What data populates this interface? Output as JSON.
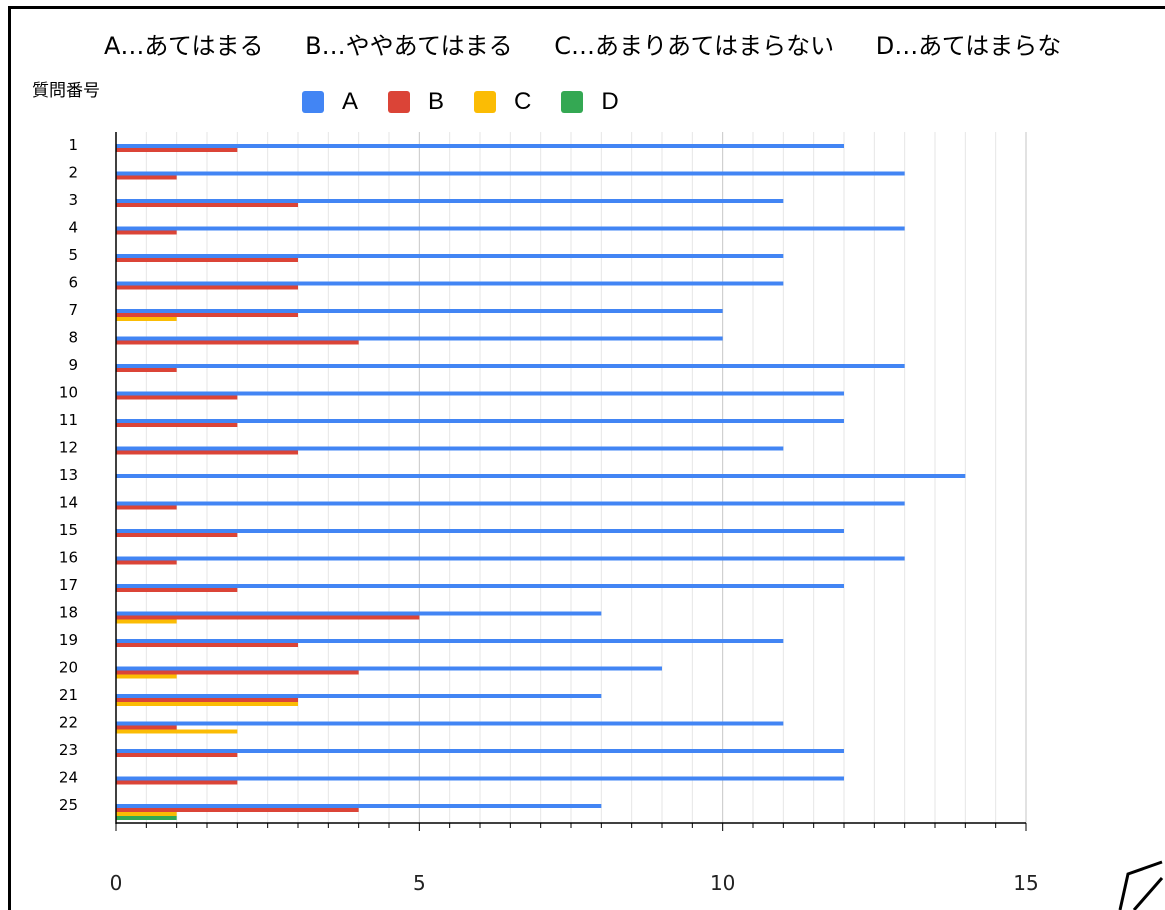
{
  "header": {
    "options": [
      "A…あてはまる",
      "B…ややあてはまる",
      "C…あまりあてはまらない",
      "D…あてはまらな"
    ]
  },
  "chart_data": {
    "type": "bar",
    "orientation": "horizontal",
    "ylabel": "質問番号",
    "xlabel": "",
    "title": "",
    "categories": [
      "1",
      "2",
      "3",
      "4",
      "5",
      "6",
      "7",
      "8",
      "9",
      "10",
      "11",
      "12",
      "13",
      "14",
      "15",
      "16",
      "17",
      "18",
      "19",
      "20",
      "21",
      "22",
      "23",
      "24",
      "25"
    ],
    "xlim": [
      0,
      15
    ],
    "xticks": [
      0,
      5,
      10,
      15
    ],
    "grid": true,
    "legend_position": "top",
    "series": [
      {
        "name": "A",
        "color": "#4285f4",
        "values": [
          12,
          13,
          11,
          13,
          11,
          11,
          10,
          10,
          13,
          12,
          12,
          11,
          14,
          13,
          12,
          13,
          12,
          8,
          11,
          9,
          8,
          11,
          12,
          12,
          8
        ]
      },
      {
        "name": "B",
        "color": "#db4437",
        "values": [
          2,
          1,
          3,
          1,
          3,
          3,
          3,
          4,
          1,
          2,
          2,
          3,
          0,
          1,
          2,
          1,
          2,
          5,
          3,
          4,
          3,
          1,
          2,
          2,
          4
        ]
      },
      {
        "name": "C",
        "color": "#fbbc04",
        "values": [
          0,
          0,
          0,
          0,
          0,
          0,
          1,
          0,
          0,
          0,
          0,
          0,
          0,
          0,
          0,
          0,
          0,
          1,
          0,
          1,
          3,
          2,
          0,
          0,
          1
        ]
      },
      {
        "name": "D",
        "color": "#34a853",
        "values": [
          0,
          0,
          0,
          0,
          0,
          0,
          0,
          0,
          0,
          0,
          0,
          0,
          0,
          0,
          0,
          0,
          0,
          0,
          0,
          0,
          0,
          0,
          0,
          0,
          1
        ]
      }
    ]
  }
}
